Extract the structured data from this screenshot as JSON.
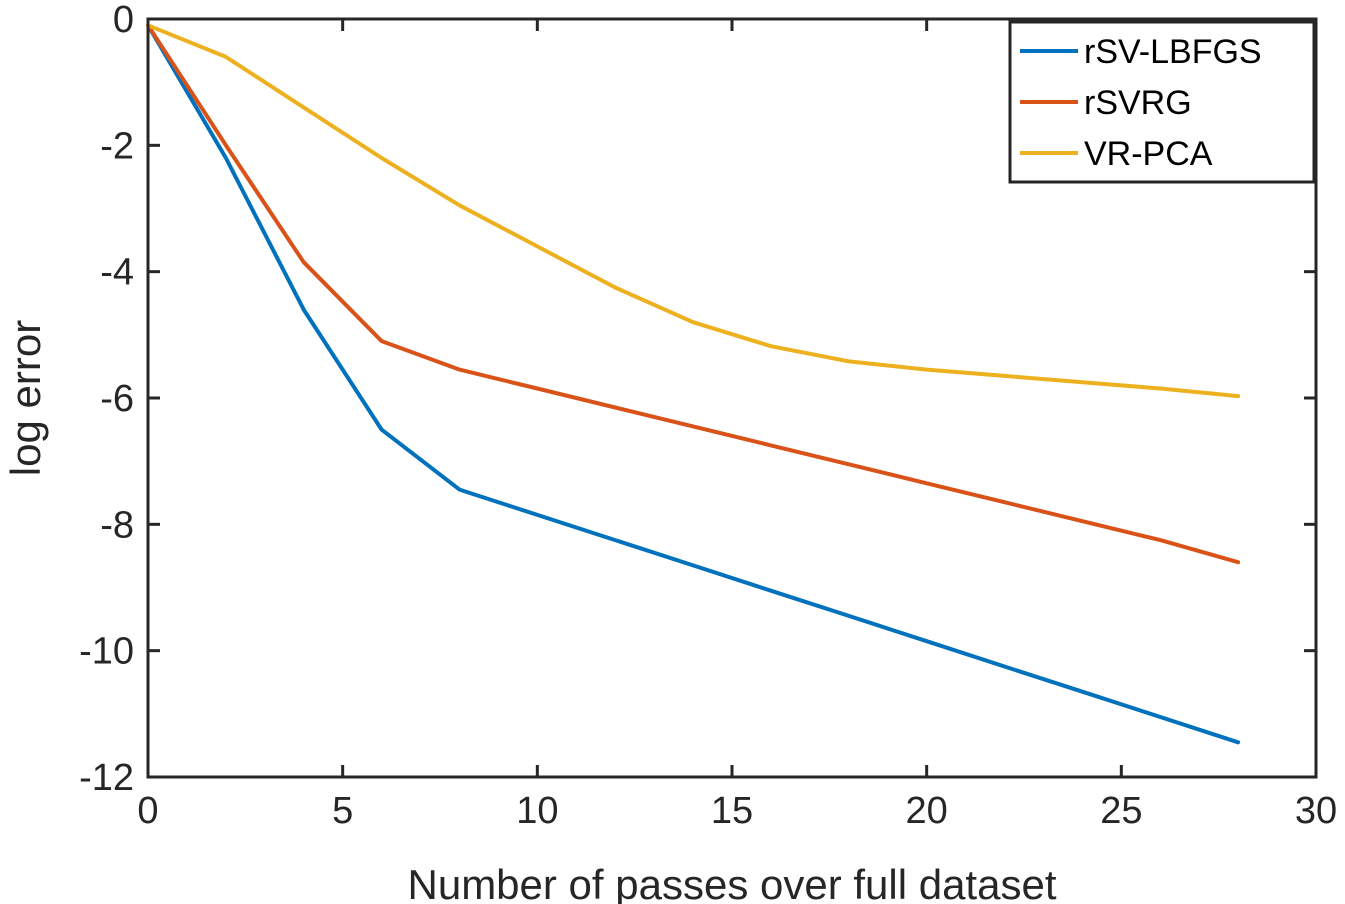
{
  "chart_data": {
    "type": "line",
    "title": "",
    "xlabel": "Number of passes over full dataset",
    "ylabel": "log error",
    "xlim": [
      0,
      30
    ],
    "ylim": [
      -12,
      0
    ],
    "xticks": [
      0,
      5,
      10,
      15,
      20,
      25,
      30
    ],
    "yticks": [
      0,
      -2,
      -4,
      -6,
      -8,
      -10,
      -12
    ],
    "legend_position": "top-right",
    "series": [
      {
        "name": "rSV-LBFGS",
        "color": "#0072BD",
        "x": [
          0,
          2,
          4,
          6,
          8,
          10,
          12,
          14,
          16,
          18,
          20,
          22,
          24,
          26,
          28
        ],
        "y": [
          -0.1,
          -2.2,
          -4.6,
          -6.5,
          -7.45,
          -7.85,
          -8.25,
          -8.65,
          -9.05,
          -9.45,
          -9.85,
          -10.25,
          -10.65,
          -11.05,
          -11.45
        ]
      },
      {
        "name": "rSVRG",
        "color": "#D95319",
        "x": [
          0,
          2,
          4,
          6,
          8,
          10,
          12,
          14,
          16,
          18,
          20,
          22,
          24,
          26,
          28
        ],
        "y": [
          -0.1,
          -2.0,
          -3.85,
          -5.1,
          -5.55,
          -5.85,
          -6.15,
          -6.45,
          -6.75,
          -7.05,
          -7.35,
          -7.65,
          -7.95,
          -8.25,
          -8.6
        ]
      },
      {
        "name": "VR-PCA",
        "color": "#EDB120",
        "x": [
          0,
          2,
          4,
          6,
          8,
          10,
          12,
          14,
          16,
          18,
          20,
          22,
          24,
          26,
          28
        ],
        "y": [
          -0.1,
          -0.6,
          -1.4,
          -2.2,
          -2.95,
          -3.6,
          -4.25,
          -4.8,
          -5.18,
          -5.42,
          -5.55,
          -5.65,
          -5.75,
          -5.85,
          -5.97
        ]
      }
    ]
  }
}
